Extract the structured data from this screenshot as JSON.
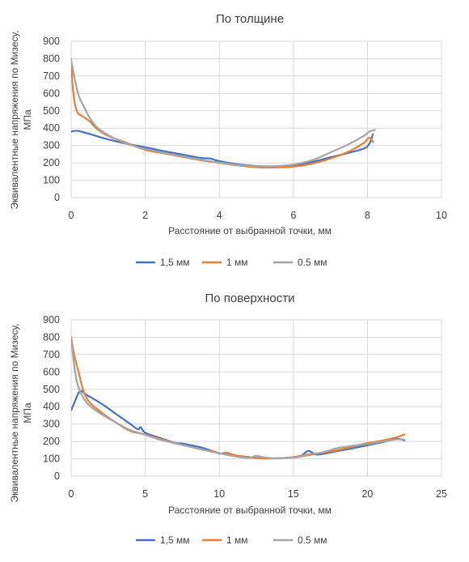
{
  "charts": [
    {
      "type": "line",
      "title": "По толщине",
      "xlabel": "Расстояние от выбранной точки, мм",
      "ylabel_lines": [
        "Эквивалентные напряжения по Мизесу,",
        "МПа"
      ],
      "xlim": [
        0,
        10
      ],
      "ylim": [
        0,
        900
      ],
      "xticks": [
        0,
        2,
        4,
        6,
        8,
        10
      ],
      "yticks": [
        0,
        100,
        200,
        300,
        400,
        500,
        600,
        700,
        800,
        900
      ],
      "grid": true,
      "legend_position": "bottom",
      "series": [
        {
          "name": "1,5 мм",
          "color": "#4472C4",
          "points": [
            [
              0,
              380
            ],
            [
              0.15,
              385
            ],
            [
              0.3,
              378
            ],
            [
              0.6,
              360
            ],
            [
              1,
              335
            ],
            [
              1.5,
              310
            ],
            [
              2,
              290
            ],
            [
              2.5,
              268
            ],
            [
              3,
              248
            ],
            [
              3.5,
              228
            ],
            [
              3.75,
              225
            ],
            [
              4,
              210
            ],
            [
              4.5,
              192
            ],
            [
              5,
              182
            ],
            [
              5.5,
              180
            ],
            [
              6,
              185
            ],
            [
              6.5,
              205
            ],
            [
              7,
              232
            ],
            [
              7.5,
              258
            ],
            [
              7.9,
              282
            ],
            [
              8.05,
              310
            ],
            [
              8.15,
              365
            ]
          ]
        },
        {
          "name": "1 мм",
          "color": "#ED7D31",
          "points": [
            [
              0,
              800
            ],
            [
              0.05,
              620
            ],
            [
              0.15,
              500
            ],
            [
              0.3,
              470
            ],
            [
              0.5,
              440
            ],
            [
              0.7,
              395
            ],
            [
              1,
              355
            ],
            [
              1.5,
              315
            ],
            [
              2,
              275
            ],
            [
              2.5,
              255
            ],
            [
              3,
              235
            ],
            [
              3.5,
              215
            ],
            [
              4,
              200
            ],
            [
              4.5,
              185
            ],
            [
              5,
              175
            ],
            [
              5.5,
              173
            ],
            [
              6,
              178
            ],
            [
              6.5,
              195
            ],
            [
              7,
              225
            ],
            [
              7.5,
              265
            ],
            [
              7.9,
              315
            ],
            [
              8.05,
              345
            ],
            [
              8.15,
              320
            ]
          ]
        },
        {
          "name": "0.5 мм",
          "color": "#A5A5A5",
          "points": [
            [
              0,
              790
            ],
            [
              0.1,
              680
            ],
            [
              0.2,
              590
            ],
            [
              0.35,
              520
            ],
            [
              0.5,
              460
            ],
            [
              0.7,
              405
            ],
            [
              1,
              360
            ],
            [
              1.5,
              310
            ],
            [
              2,
              280
            ],
            [
              2.5,
              258
            ],
            [
              3,
              238
            ],
            [
              3.5,
              217
            ],
            [
              4,
              202
            ],
            [
              4.5,
              188
            ],
            [
              5,
              180
            ],
            [
              5.5,
              180
            ],
            [
              6,
              190
            ],
            [
              6.5,
              215
            ],
            [
              7,
              260
            ],
            [
              7.5,
              308
            ],
            [
              7.9,
              355
            ],
            [
              8.05,
              380
            ],
            [
              8.2,
              390
            ]
          ]
        }
      ]
    },
    {
      "type": "line",
      "title": "По поверхности",
      "xlabel": "Расстояние от выбранной точки, мм",
      "ylabel_lines": [
        "Эквивалентные напряжения по Мизесу,",
        "МПа"
      ],
      "xlim": [
        0,
        25
      ],
      "ylim": [
        0,
        900
      ],
      "xticks": [
        0,
        5,
        10,
        15,
        20,
        25
      ],
      "yticks": [
        0,
        100,
        200,
        300,
        400,
        500,
        600,
        700,
        800,
        900
      ],
      "grid": true,
      "legend_position": "bottom",
      "series": [
        {
          "name": "1,5 мм",
          "color": "#4472C4",
          "points": [
            [
              0,
              380
            ],
            [
              0.3,
              440
            ],
            [
              0.5,
              480
            ],
            [
              0.7,
              490
            ],
            [
              1,
              470
            ],
            [
              2,
              420
            ],
            [
              3,
              360
            ],
            [
              4,
              300
            ],
            [
              4.5,
              270
            ],
            [
              4.7,
              282
            ],
            [
              5,
              250
            ],
            [
              6,
              220
            ],
            [
              7,
              192
            ],
            [
              7.5,
              188
            ],
            [
              8,
              180
            ],
            [
              9,
              160
            ],
            [
              10,
              132
            ],
            [
              11,
              120
            ],
            [
              12,
              110
            ],
            [
              13,
              103
            ],
            [
              14,
              103
            ],
            [
              15,
              108
            ],
            [
              15.5,
              115
            ],
            [
              16,
              145
            ],
            [
              16.5,
              125
            ],
            [
              17,
              128
            ],
            [
              18,
              145
            ],
            [
              19,
              160
            ],
            [
              20,
              178
            ],
            [
              21,
              195
            ],
            [
              22,
              215
            ],
            [
              22.5,
              205
            ]
          ]
        },
        {
          "name": "1 мм",
          "color": "#ED7D31",
          "points": [
            [
              0,
              800
            ],
            [
              0.2,
              700
            ],
            [
              0.5,
              600
            ],
            [
              0.8,
              500
            ],
            [
              1.2,
              430
            ],
            [
              2,
              370
            ],
            [
              3,
              310
            ],
            [
              4,
              260
            ],
            [
              5,
              240
            ],
            [
              6,
              215
            ],
            [
              7,
              190
            ],
            [
              8,
              170
            ],
            [
              9,
              150
            ],
            [
              9.5,
              145
            ],
            [
              10,
              130
            ],
            [
              10.5,
              135
            ],
            [
              11,
              122
            ],
            [
              12,
              108
            ],
            [
              13,
              102
            ],
            [
              14,
              103
            ],
            [
              15,
              110
            ],
            [
              16,
              125
            ],
            [
              17,
              135
            ],
            [
              18,
              150
            ],
            [
              19,
              170
            ],
            [
              20,
              190
            ],
            [
              21,
              205
            ],
            [
              22,
              225
            ],
            [
              22.5,
              240
            ]
          ]
        },
        {
          "name": "0.5 мм",
          "color": "#A5A5A5",
          "points": [
            [
              0,
              800
            ],
            [
              0.2,
              640
            ],
            [
              0.4,
              540
            ],
            [
              0.7,
              470
            ],
            [
              1.2,
              410
            ],
            [
              2,
              360
            ],
            [
              3,
              310
            ],
            [
              4,
              265
            ],
            [
              5,
              238
            ],
            [
              6,
              210
            ],
            [
              7,
              190
            ],
            [
              8,
              170
            ],
            [
              9,
              150
            ],
            [
              10,
              132
            ],
            [
              11,
              115
            ],
            [
              12,
              105
            ],
            [
              12.5,
              118
            ],
            [
              13,
              108
            ],
            [
              14,
              102
            ],
            [
              15,
              108
            ],
            [
              16,
              120
            ],
            [
              17,
              138
            ],
            [
              18,
              162
            ],
            [
              19,
              175
            ],
            [
              20,
              185
            ],
            [
              21,
              198
            ],
            [
              22,
              212
            ],
            [
              22.5,
              210
            ]
          ]
        }
      ]
    }
  ]
}
